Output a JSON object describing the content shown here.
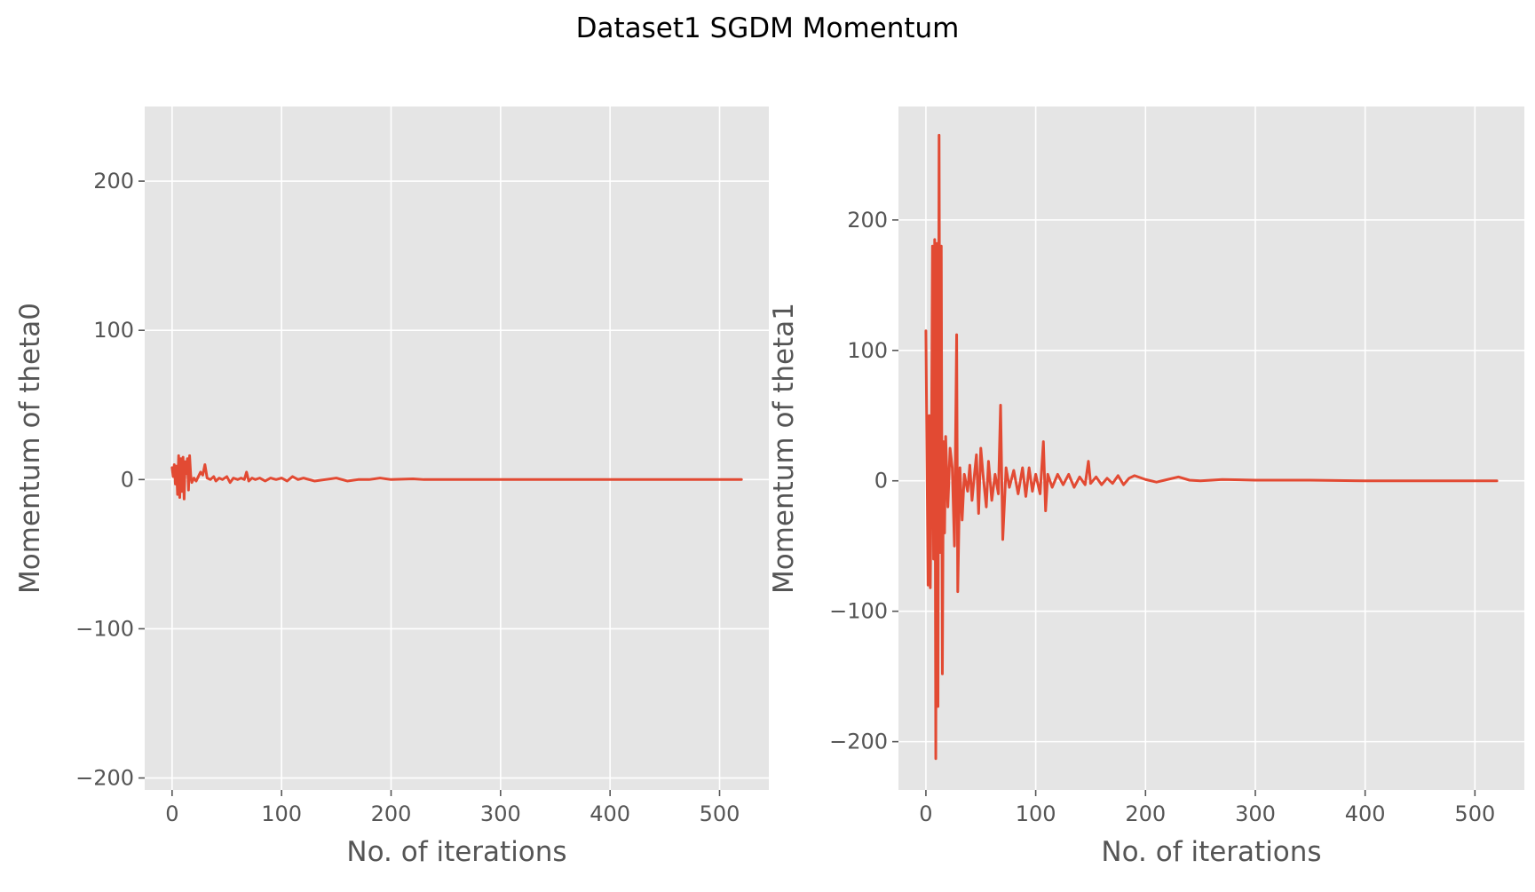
{
  "figure": {
    "title": "Dataset1 SGDM Momentum"
  },
  "style": {
    "plot_background": "#e5e5e5",
    "grid_color": "#ffffff",
    "line_color": "#e24a33",
    "tick_label_color": "#555555",
    "axis_label_color": "#555555"
  },
  "chart_data": [
    {
      "type": "line",
      "xlabel": "No. of iterations",
      "ylabel": "Momentum of theta0",
      "xlim": [
        -25,
        545
      ],
      "ylim": [
        -208,
        250
      ],
      "xticks": [
        0,
        100,
        200,
        300,
        400,
        500
      ],
      "yticks": [
        -200,
        -100,
        0,
        100,
        200
      ],
      "ytick_labels": [
        "−200",
        "−100",
        "0",
        "100",
        "200"
      ],
      "grid": true,
      "series": [
        {
          "x": [
            0,
            1,
            2,
            3,
            4,
            5,
            6,
            7,
            8,
            9,
            10,
            11,
            12,
            13,
            14,
            15,
            16,
            17,
            18,
            20,
            22,
            24,
            26,
            28,
            30,
            32,
            35,
            38,
            40,
            43,
            46,
            50,
            53,
            56,
            60,
            63,
            66,
            68,
            70,
            73,
            76,
            80,
            85,
            90,
            95,
            100,
            105,
            110,
            115,
            120,
            130,
            140,
            150,
            160,
            170,
            180,
            190,
            200,
            220,
            230,
            250,
            270,
            300,
            350,
            400,
            450,
            500,
            520
          ],
          "y": [
            8,
            2,
            10,
            -3,
            9,
            -10,
            16,
            -12,
            14,
            -8,
            15,
            -13,
            12,
            4,
            14,
            -7,
            16,
            3,
            -2,
            1,
            -1,
            2,
            5,
            3,
            10,
            1,
            0,
            2,
            -1,
            1,
            0,
            2,
            -2,
            1,
            0,
            1,
            0,
            5,
            -1,
            1,
            0,
            1,
            -1,
            1,
            0,
            1,
            -1,
            2,
            0,
            1,
            -1,
            0,
            1,
            -1,
            0,
            0,
            1,
            0,
            0.5,
            0,
            0,
            0,
            0,
            0,
            0,
            0,
            0,
            0
          ]
        }
      ]
    },
    {
      "type": "line",
      "xlabel": "No. of iterations",
      "ylabel": "Momentum of theta1",
      "xlim": [
        -25,
        545
      ],
      "ylim": [
        -237,
        287
      ],
      "xticks": [
        0,
        100,
        200,
        300,
        400,
        500
      ],
      "yticks": [
        -200,
        -100,
        0,
        100,
        200
      ],
      "ytick_labels": [
        "−200",
        "−100",
        "0",
        "100",
        "200"
      ],
      "grid": true,
      "series": [
        {
          "x": [
            0,
            2,
            3,
            4,
            5,
            6,
            7,
            8,
            9,
            10,
            11,
            12,
            13,
            14,
            15,
            16,
            17,
            18,
            20,
            22,
            24,
            26,
            28,
            29,
            31,
            33,
            35,
            38,
            40,
            42,
            44,
            46,
            48,
            50,
            52,
            55,
            57,
            60,
            63,
            66,
            68,
            70,
            73,
            76,
            80,
            84,
            88,
            91,
            94,
            97,
            100,
            104,
            107,
            109,
            111,
            115,
            120,
            125,
            130,
            135,
            140,
            145,
            148,
            150,
            155,
            160,
            165,
            170,
            175,
            180,
            185,
            190,
            200,
            210,
            220,
            230,
            240,
            250,
            270,
            300,
            350,
            400,
            450,
            500,
            520
          ],
          "y": [
            115,
            -80,
            50,
            -82,
            15,
            180,
            -60,
            185,
            -213,
            182,
            -173,
            265,
            -55,
            180,
            -148,
            30,
            -40,
            34,
            -20,
            25,
            10,
            -50,
            112,
            -85,
            10,
            -30,
            5,
            -8,
            12,
            -15,
            3,
            20,
            -25,
            25,
            5,
            -20,
            15,
            -15,
            5,
            -10,
            58,
            -45,
            10,
            -5,
            8,
            -10,
            10,
            -12,
            10,
            -8,
            5,
            -10,
            30,
            -23,
            5,
            -5,
            5,
            -3,
            5,
            -5,
            3,
            -3,
            15,
            -2,
            3,
            -3,
            2,
            -2,
            4,
            -3,
            2,
            4,
            1,
            -1,
            1,
            3,
            0.5,
            0,
            1,
            0.5,
            0.5,
            0,
            0,
            0,
            0
          ]
        }
      ]
    }
  ]
}
